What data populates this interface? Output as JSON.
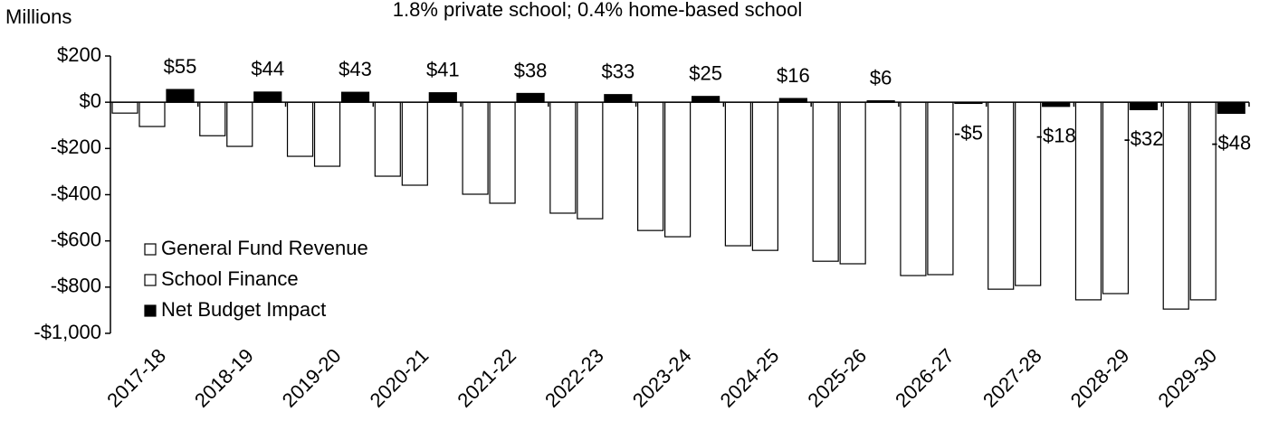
{
  "chart_data": {
    "type": "bar",
    "subtitle": "1.8% private school; 0.4% home-based school",
    "y_label": "Millions",
    "categories": [
      "2017-18",
      "2018-19",
      "2019-20",
      "2020-21",
      "2021-22",
      "2022-23",
      "2023-24",
      "2024-25",
      "2025-26",
      "2026-27",
      "2027-28",
      "2028-29",
      "2029-30"
    ],
    "series": [
      {
        "name": "General Fund Revenue",
        "color": "#ffffff",
        "values": [
          -47,
          -145,
          -234,
          -320,
          -398,
          -480,
          -555,
          -621,
          -688,
          -750,
          -809,
          -855,
          -895
        ]
      },
      {
        "name": "School Finance",
        "color": "#ffffff",
        "values": [
          -105,
          -191,
          -277,
          -359,
          -437,
          -504,
          -582,
          -641,
          -699,
          -746,
          -793,
          -828,
          -855
        ]
      },
      {
        "name": "Net Budget Impact",
        "color": "#000000",
        "values": [
          55,
          44,
          43,
          41,
          38,
          33,
          25,
          16,
          6,
          -5,
          -18,
          -32,
          -48
        ],
        "value_labels": [
          "$55",
          "$44",
          "$43",
          "$41",
          "$38",
          "$33",
          "$25",
          "$16",
          "$6",
          "-$5",
          "-$18",
          "-$32",
          "-$48"
        ]
      }
    ],
    "ylim": [
      -1000,
      200
    ],
    "yticks": [
      {
        "value": -1000,
        "label": "-$1,000"
      },
      {
        "value": -800,
        "label": "-$800"
      },
      {
        "value": -600,
        "label": "-$600"
      },
      {
        "value": -400,
        "label": "-$400"
      },
      {
        "value": -200,
        "label": "-$200"
      },
      {
        "value": 0,
        "label": "$0"
      },
      {
        "value": 200,
        "label": "$200"
      }
    ],
    "legend": "lower-left"
  }
}
